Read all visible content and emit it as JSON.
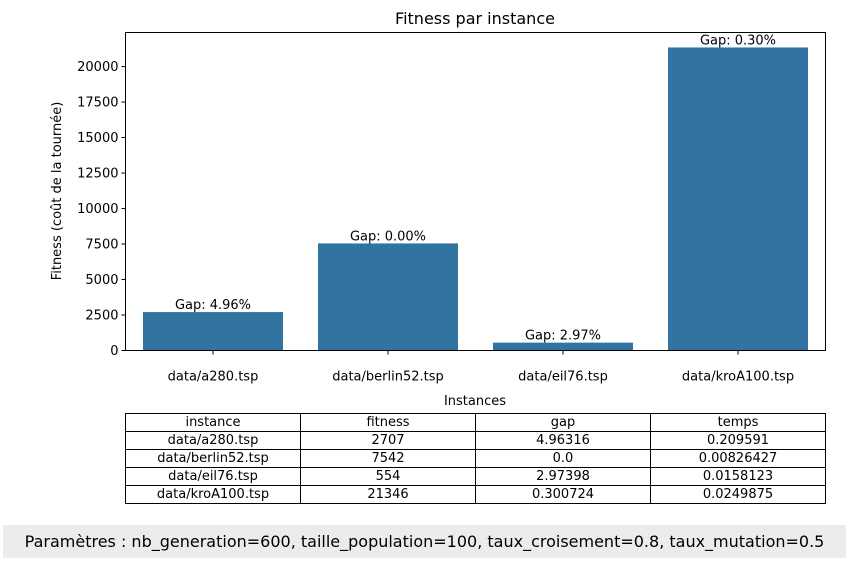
{
  "chart_data": {
    "type": "bar",
    "title": "Fitness par instance",
    "xlabel": "Instances",
    "ylabel": "Fitness (coût de la tournée)",
    "categories": [
      "data/a280.tsp",
      "data/berlin52.tsp",
      "data/eil76.tsp",
      "data/kroA100.tsp"
    ],
    "values": [
      2707,
      7542,
      554,
      21346
    ],
    "bar_labels": [
      "Gap: 4.96%",
      "Gap: 0.00%",
      "Gap: 2.97%",
      "Gap: 0.30%"
    ],
    "ylim": [
      0,
      22400
    ],
    "yticks": [
      0,
      2500,
      5000,
      7500,
      10000,
      12500,
      15000,
      17500,
      20000
    ],
    "grid": false,
    "bar_color": "#3274a1"
  },
  "table": {
    "columns": [
      "instance",
      "fitness",
      "gap",
      "temps"
    ],
    "rows": [
      [
        "data/a280.tsp",
        "2707",
        "4.96316",
        "0.209591"
      ],
      [
        "data/berlin52.tsp",
        "7542",
        "0.0",
        "0.00826427"
      ],
      [
        "data/eil76.tsp",
        "554",
        "2.97398",
        "0.0158123"
      ],
      [
        "data/kroA100.tsp",
        "21346",
        "0.300724",
        "0.0249875"
      ]
    ]
  },
  "footer": "Paramètres : nb_generation=600, taille_population=100, taux_croisement=0.8, taux_mutation=0.5"
}
